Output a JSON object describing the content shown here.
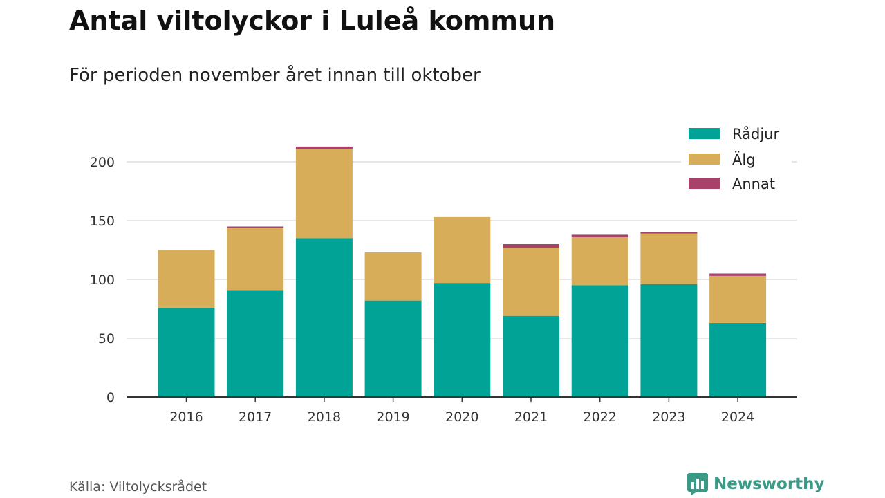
{
  "header": {
    "title": "Antal viltolyckor i Luleå kommun",
    "subtitle": "För perioden november året innan till oktober"
  },
  "footer": {
    "source": "Källa: Viltolycksrådet",
    "brand": "Newsworthy",
    "brand_icon": "newsworthy-logo-icon"
  },
  "colors": {
    "radjur": "#00a396",
    "alg": "#d8ad5a",
    "annat": "#a8426b",
    "grid": "#dddddd",
    "axis": "#333333",
    "brand": "#3a9a86"
  },
  "chart_data": {
    "type": "bar",
    "stacked": true,
    "categories": [
      "2016",
      "2017",
      "2018",
      "2019",
      "2020",
      "2021",
      "2022",
      "2023",
      "2024"
    ],
    "series": [
      {
        "name": "Rådjur",
        "color": "#00a396",
        "values": [
          76,
          91,
          135,
          82,
          97,
          69,
          95,
          96,
          63
        ]
      },
      {
        "name": "Älg",
        "color": "#d8ad5a",
        "values": [
          49,
          53,
          76,
          41,
          56,
          58,
          41,
          43,
          40
        ]
      },
      {
        "name": "Annat",
        "color": "#a8426b",
        "values": [
          0,
          1,
          2,
          0,
          0,
          3,
          2,
          1,
          2
        ]
      }
    ],
    "yticks": [
      0,
      50,
      100,
      150,
      200
    ],
    "ylim": [
      0,
      225
    ],
    "xlabel": "",
    "ylabel": "",
    "grid": true,
    "legend_position": "top-right"
  }
}
